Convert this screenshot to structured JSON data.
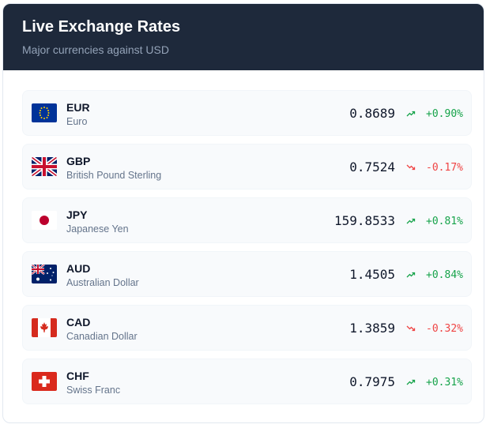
{
  "header": {
    "title": "Live Exchange Rates",
    "subtitle": "Major currencies against USD"
  },
  "rows": [
    {
      "code": "EUR",
      "name": "Euro",
      "rate": "0.8689",
      "change": "+0.90%"
    },
    {
      "code": "GBP",
      "name": "British Pound Sterling",
      "rate": "0.7524",
      "change": "-0.17%"
    },
    {
      "code": "JPY",
      "name": "Japanese Yen",
      "rate": "159.8533",
      "change": "+0.81%"
    },
    {
      "code": "AUD",
      "name": "Australian Dollar",
      "rate": "1.4505",
      "change": "+0.84%"
    },
    {
      "code": "CAD",
      "name": "Canadian Dollar",
      "rate": "1.3859",
      "change": "-0.32%"
    },
    {
      "code": "CHF",
      "name": "Swiss Franc",
      "rate": "0.7975",
      "change": "+0.31%"
    }
  ]
}
